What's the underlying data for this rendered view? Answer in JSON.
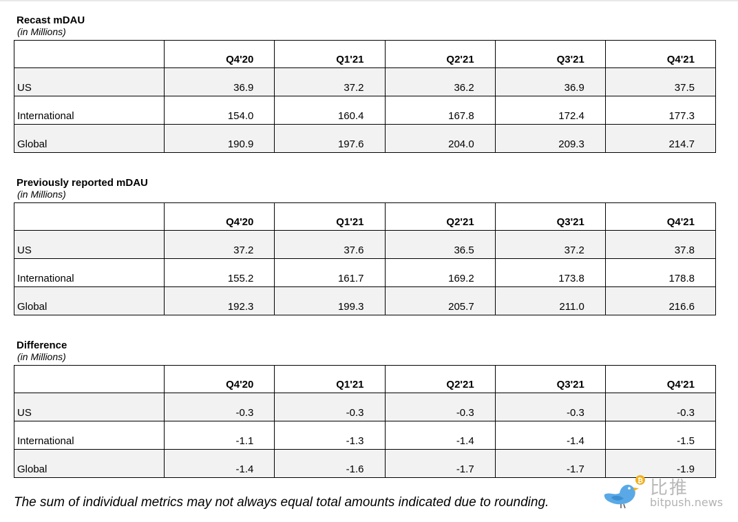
{
  "sections": [
    {
      "title": "Recast mDAU",
      "unit": "(in Millions)",
      "columns": [
        "Q4'20",
        "Q1'21",
        "Q2'21",
        "Q3'21",
        "Q4'21"
      ],
      "rows": [
        {
          "label": "US",
          "values": [
            "36.9",
            "37.2",
            "36.2",
            "36.9",
            "37.5"
          ]
        },
        {
          "label": "International",
          "values": [
            "154.0",
            "160.4",
            "167.8",
            "172.4",
            "177.3"
          ]
        },
        {
          "label": "Global",
          "values": [
            "190.9",
            "197.6",
            "204.0",
            "209.3",
            "214.7"
          ]
        }
      ]
    },
    {
      "title": "Previously reported mDAU",
      "unit": "(in Millions)",
      "columns": [
        "Q4'20",
        "Q1'21",
        "Q2'21",
        "Q3'21",
        "Q4'21"
      ],
      "rows": [
        {
          "label": "US",
          "values": [
            "37.2",
            "37.6",
            "36.5",
            "37.2",
            "37.8"
          ]
        },
        {
          "label": "International",
          "values": [
            "155.2",
            "161.7",
            "169.2",
            "173.8",
            "178.8"
          ]
        },
        {
          "label": "Global",
          "values": [
            "192.3",
            "199.3",
            "205.7",
            "211.0",
            "216.6"
          ]
        }
      ]
    },
    {
      "title": "Difference",
      "unit": "(in Millions)",
      "columns": [
        "Q4'20",
        "Q1'21",
        "Q2'21",
        "Q3'21",
        "Q4'21"
      ],
      "rows": [
        {
          "label": "US",
          "values": [
            "-0.3",
            "-0.3",
            "-0.3",
            "-0.3",
            "-0.3"
          ]
        },
        {
          "label": "International",
          "values": [
            "-1.1",
            "-1.3",
            "-1.4",
            "-1.4",
            "-1.5"
          ]
        },
        {
          "label": "Global",
          "values": [
            "-1.4",
            "-1.6",
            "-1.7",
            "-1.7",
            "-1.9"
          ]
        }
      ]
    }
  ],
  "footnote": "The sum of individual metrics may not always equal total amounts indicated due to rounding.",
  "watermark": {
    "text_cn": "比推",
    "text_en": "bitpush.news",
    "bird_color": "#5aa9e6",
    "coin_color": "#f0b020"
  }
}
